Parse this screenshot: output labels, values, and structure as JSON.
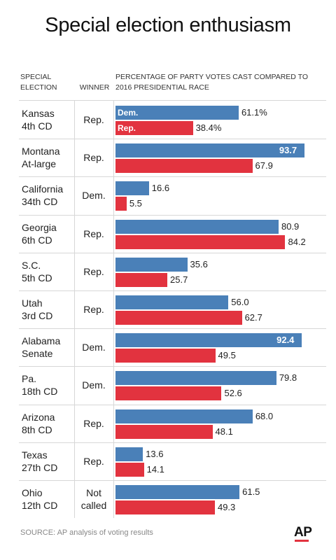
{
  "title": "Special election enthusiasm",
  "headers": {
    "election": "SPECIAL ELECTION",
    "winner": "WINNER",
    "percentage": "PERCENTAGE OF PARTY VOTES CAST COMPARED TO 2016 PRESIDENTIAL RACE"
  },
  "legend": {
    "dem": "Dem.",
    "rep": "Rep."
  },
  "colors": {
    "dem": "#4a80b8",
    "rep": "#e2333f"
  },
  "source": "SOURCE: AP analysis of voting results",
  "logo": "AP",
  "chart_data": {
    "type": "bar",
    "orientation": "horizontal",
    "title": "Special election enthusiasm",
    "xlim": [
      0,
      100
    ],
    "grid": false,
    "categories": [
      {
        "line1": "Kansas",
        "line2": "4th CD",
        "winner": "Rep."
      },
      {
        "line1": "Montana",
        "line2": "At-large",
        "winner": "Rep."
      },
      {
        "line1": "California",
        "line2": "34th CD",
        "winner": "Dem."
      },
      {
        "line1": "Georgia",
        "line2": "6th CD",
        "winner": "Rep."
      },
      {
        "line1": "S.C.",
        "line2": "5th CD",
        "winner": "Rep."
      },
      {
        "line1": "Utah",
        "line2": "3rd CD",
        "winner": "Rep."
      },
      {
        "line1": "Alabama",
        "line2": "Senate",
        "winner": "Dem."
      },
      {
        "line1": "Pa.",
        "line2": "18th CD",
        "winner": "Dem."
      },
      {
        "line1": "Arizona",
        "line2": "8th CD",
        "winner": "Rep."
      },
      {
        "line1": "Texas",
        "line2": "27th CD",
        "winner": "Rep."
      },
      {
        "line1": "Ohio",
        "line2": "12th CD",
        "winner": "Not called"
      }
    ],
    "series": [
      {
        "name": "Dem.",
        "values": [
          61.1,
          93.7,
          16.6,
          80.9,
          35.6,
          56.0,
          92.4,
          79.8,
          68.0,
          13.6,
          61.5
        ],
        "labels": [
          "61.1%",
          "93.7",
          "16.6",
          "80.9",
          "35.6",
          "56.0",
          "92.4",
          "79.8",
          "68.0",
          "13.6",
          "61.5"
        ]
      },
      {
        "name": "Rep.",
        "values": [
          38.4,
          67.9,
          5.5,
          84.2,
          25.7,
          62.7,
          49.5,
          52.6,
          48.1,
          14.1,
          49.3
        ],
        "labels": [
          "38.4%",
          "67.9",
          "5.5",
          "84.2",
          "25.7",
          "62.7",
          "49.5",
          "52.6",
          "48.1",
          "14.1",
          "49.3"
        ]
      }
    ]
  }
}
